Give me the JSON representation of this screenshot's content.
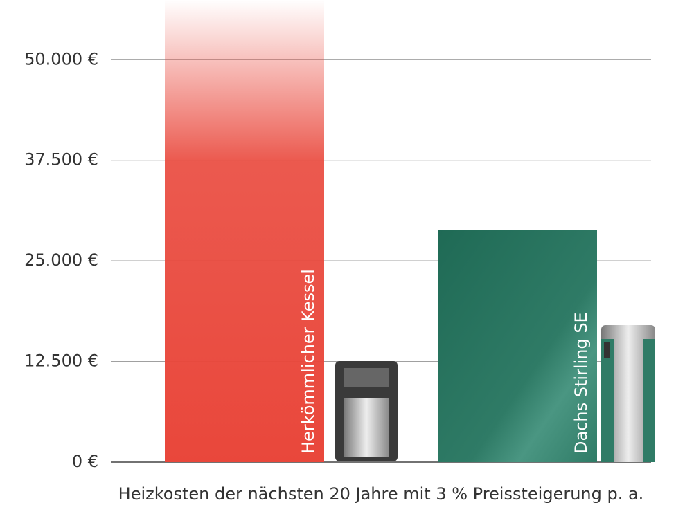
{
  "chart_data": {
    "type": "bar",
    "x_label": "Heizkosten der nächsten 20 Jahre mit 3 % Preissteigerung p. a.",
    "categories": [
      "Herkömmlicher Kessel",
      "Dachs Stirling SE"
    ],
    "values": [
      57500,
      28800
    ],
    "colors": [
      "#e9473b",
      "#2f7b66"
    ],
    "ylim": [
      0,
      57500
    ],
    "yticks": [
      {
        "value": 0,
        "label": "0 €"
      },
      {
        "value": 12500,
        "label": "12.500 €"
      },
      {
        "value": 25000,
        "label": "25.000 €"
      },
      {
        "value": 37500,
        "label": "37.500 €"
      },
      {
        "value": 50000,
        "label": "50.000 €"
      }
    ],
    "grid": true
  }
}
